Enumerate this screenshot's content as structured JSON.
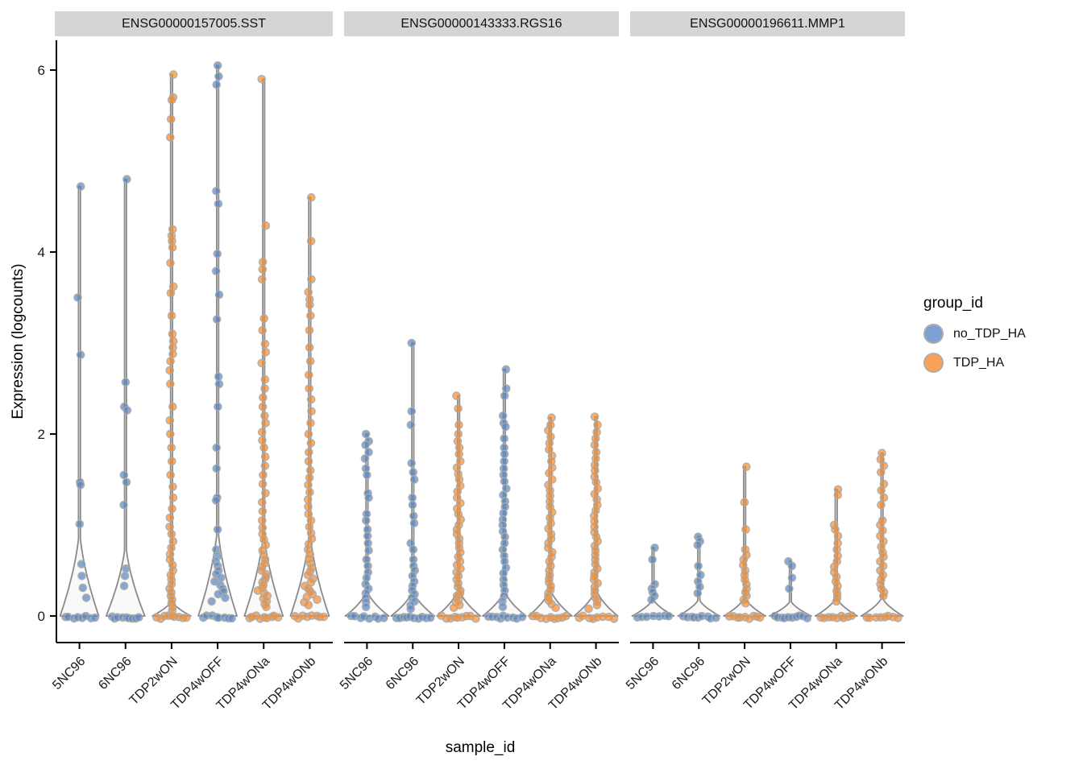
{
  "chart_data": {
    "type": "violin",
    "xlabel": "sample_id",
    "ylabel": "Expression (logcounts)",
    "y_ticks": [
      0,
      2,
      4,
      6
    ],
    "ylim": [
      0,
      6.3
    ],
    "grid": false,
    "samples": [
      "5NC96",
      "6NC96",
      "TDP2wON",
      "TDP4wOFF",
      "TDP4wONa",
      "TDP4wONb"
    ],
    "legend": {
      "title": "group_id",
      "entries": [
        {
          "label": "no_TDP_HA",
          "color": "#7DA0D2"
        },
        {
          "label": "TDP_HA",
          "color": "#F9A257"
        }
      ]
    },
    "colors": {
      "no_TDP_HA": "#5585C2",
      "TDP_HA": "#F68B2C",
      "violin_fill": "#F9F9F9",
      "violin_stroke": "#8A8A8A",
      "point_stroke": "#ABABAB",
      "strip_bg": "#D5D5D5",
      "axis": "#000000"
    },
    "facets": [
      {
        "title": "ENSG00000157005.SST",
        "violins": [
          {
            "sample": "5NC96",
            "group": "no_TDP_HA",
            "flare": 1.0,
            "half": 24,
            "points": [
              4.72,
              3.5,
              2.87,
              1.47,
              1.44,
              1.01,
              0.57,
              0.44,
              0.31,
              0.2
            ],
            "zeros": 8
          },
          {
            "sample": "6NC96",
            "group": "no_TDP_HA",
            "flare": 0.85,
            "half": 24,
            "points": [
              4.8,
              2.57,
              2.3,
              2.26,
              1.55,
              1.47,
              1.22,
              0.52,
              0.44,
              0.33
            ],
            "zeros": 9
          },
          {
            "sample": "TDP2wON",
            "group": "TDP_HA",
            "flare": 0.18,
            "half": 24,
            "points": [
              5.95,
              5.7,
              5.67,
              5.46,
              5.26,
              4.25,
              4.18,
              4.12,
              4.05,
              3.88,
              3.62,
              3.55,
              3.3,
              3.1,
              3.02,
              2.95,
              2.88,
              2.8,
              2.7,
              2.55,
              2.3,
              2.15,
              2.0,
              1.85,
              1.7,
              1.55,
              1.42,
              1.3,
              1.18,
              1.08,
              0.98,
              0.9,
              0.82,
              0.75,
              0.68,
              0.62,
              0.56,
              0.5,
              0.45,
              0.4,
              0.35,
              0.3,
              0.26,
              0.22,
              0.18,
              0.14,
              0.1,
              0.06
            ],
            "zeros": 9
          },
          {
            "sample": "TDP4wOFF",
            "group": "no_TDP_HA",
            "flare": 1.05,
            "half": 24,
            "points": [
              6.05,
              5.93,
              5.84,
              4.67,
              4.53,
              3.98,
              3.79,
              3.53,
              3.26,
              2.63,
              2.55,
              2.3,
              1.85,
              1.62,
              1.3,
              1.27,
              0.95,
              0.73,
              0.66,
              0.6,
              0.55,
              0.5,
              0.46,
              0.42,
              0.38,
              0.34,
              0.3,
              0.27,
              0.24,
              0.2,
              0.16
            ],
            "zeros": 8
          },
          {
            "sample": "TDP4wONa",
            "group": "TDP_HA",
            "flare": 1.0,
            "half": 24,
            "points": [
              5.9,
              4.29,
              3.89,
              3.81,
              3.7,
              3.27,
              3.14,
              2.99,
              2.9,
              2.78,
              2.6,
              2.5,
              2.4,
              2.3,
              2.2,
              2.12,
              2.02,
              1.93,
              1.85,
              1.75,
              1.65,
              1.55,
              1.45,
              1.35,
              1.25,
              1.15,
              1.05,
              0.97,
              0.9,
              0.84,
              0.78,
              0.72,
              0.67,
              0.62,
              0.58,
              0.54,
              0.5,
              0.46,
              0.43,
              0.4,
              0.37,
              0.34,
              0.31,
              0.28,
              0.25,
              0.22,
              0.19,
              0.16,
              0.13,
              0.1
            ],
            "zeros": 9
          },
          {
            "sample": "TDP4wONb",
            "group": "TDP_HA",
            "flare": 1.0,
            "half": 24,
            "points": [
              4.6,
              4.12,
              3.7,
              3.56,
              3.48,
              3.42,
              3.3,
              3.14,
              2.95,
              2.8,
              2.65,
              2.5,
              2.38,
              2.25,
              2.12,
              2.0,
              1.9,
              1.8,
              1.7,
              1.6,
              1.52,
              1.44,
              1.36,
              1.28,
              1.2,
              1.12,
              1.05,
              0.98,
              0.91,
              0.85,
              0.79,
              0.73,
              0.68,
              0.63,
              0.58,
              0.53,
              0.49,
              0.45,
              0.41,
              0.37,
              0.33,
              0.3,
              0.27,
              0.24,
              0.21,
              0.18,
              0.15,
              0.12
            ],
            "zeros": 8
          }
        ]
      },
      {
        "title": "ENSG00000143333.RGS16",
        "violins": [
          {
            "sample": "5NC96",
            "group": "no_TDP_HA",
            "flare": 0.3,
            "half": 27,
            "points": [
              2.0,
              1.92,
              1.88,
              1.8,
              1.73,
              1.62,
              1.55,
              1.35,
              1.3,
              1.12,
              1.05,
              0.95,
              0.88,
              0.8,
              0.72,
              0.62,
              0.55,
              0.48,
              0.42,
              0.35,
              0.3,
              0.25,
              0.2,
              0.15,
              0.1
            ],
            "zeros": 8
          },
          {
            "sample": "6NC96",
            "group": "no_TDP_HA",
            "flare": 0.3,
            "half": 27,
            "points": [
              3.0,
              2.25,
              2.1,
              1.68,
              1.58,
              1.5,
              1.3,
              1.22,
              1.1,
              1.02,
              0.8,
              0.73,
              0.62,
              0.55,
              0.5,
              0.44,
              0.38,
              0.33,
              0.28,
              0.24,
              0.2,
              0.16,
              0.12,
              0.08
            ],
            "zeros": 10
          },
          {
            "sample": "TDP2wON",
            "group": "TDP_HA",
            "flare": 0.32,
            "half": 27,
            "points": [
              2.42,
              2.28,
              2.1,
              2.0,
              1.92,
              1.85,
              1.78,
              1.7,
              1.63,
              1.56,
              1.5,
              1.43,
              1.37,
              1.3,
              1.24,
              1.18,
              1.12,
              1.06,
              1.0,
              0.95,
              0.9,
              0.85,
              0.8,
              0.75,
              0.7,
              0.65,
              0.6,
              0.56,
              0.52,
              0.48,
              0.44,
              0.4,
              0.36,
              0.32,
              0.28,
              0.25,
              0.22,
              0.18,
              0.15,
              0.12,
              0.09
            ],
            "zeros": 9
          },
          {
            "sample": "TDP4wOFF",
            "group": "no_TDP_HA",
            "flare": 0.3,
            "half": 27,
            "points": [
              2.71,
              2.5,
              2.42,
              2.2,
              2.12,
              2.08,
              1.95,
              1.85,
              1.78,
              1.7,
              1.62,
              1.55,
              1.48,
              1.4,
              1.33,
              1.26,
              1.2,
              1.13,
              1.06,
              1.0,
              0.93,
              0.87,
              0.8,
              0.73,
              0.66,
              0.6,
              0.53,
              0.47,
              0.4,
              0.34,
              0.28,
              0.22,
              0.16,
              0.1
            ],
            "zeros": 9
          },
          {
            "sample": "TDP4wONa",
            "group": "TDP_HA",
            "flare": 0.32,
            "half": 27,
            "points": [
              2.18,
              2.1,
              2.04,
              1.97,
              1.9,
              1.83,
              1.76,
              1.7,
              1.63,
              1.57,
              1.5,
              1.44,
              1.38,
              1.32,
              1.26,
              1.2,
              1.14,
              1.08,
              1.02,
              0.96,
              0.9,
              0.85,
              0.8,
              0.75,
              0.7,
              0.65,
              0.6,
              0.55,
              0.5,
              0.45,
              0.41,
              0.37,
              0.33,
              0.29,
              0.25,
              0.21,
              0.17,
              0.13,
              0.09
            ],
            "zeros": 9
          },
          {
            "sample": "TDP4wONb",
            "group": "TDP_HA",
            "flare": 0.32,
            "half": 27,
            "points": [
              2.19,
              2.1,
              2.02,
              1.95,
              1.88,
              1.8,
              1.73,
              1.66,
              1.6,
              1.53,
              1.47,
              1.4,
              1.34,
              1.28,
              1.22,
              1.16,
              1.1,
              1.04,
              0.98,
              0.92,
              0.87,
              0.82,
              0.77,
              0.72,
              0.67,
              0.62,
              0.57,
              0.52,
              0.48,
              0.44,
              0.4,
              0.36,
              0.32,
              0.28,
              0.24,
              0.2,
              0.16,
              0.12,
              0.08
            ],
            "zeros": 8
          }
        ]
      },
      {
        "title": "ENSG00000196611.MMP1",
        "violins": [
          {
            "sample": "5NC96",
            "group": "no_TDP_HA",
            "flare": 0.2,
            "half": 26,
            "points": [
              0.75,
              0.62,
              0.35,
              0.3,
              0.26,
              0.22,
              0.18
            ],
            "zeros": 7
          },
          {
            "sample": "6NC96",
            "group": "no_TDP_HA",
            "flare": 0.2,
            "half": 26,
            "points": [
              0.87,
              0.82,
              0.78,
              0.55,
              0.45,
              0.38,
              0.32,
              0.25
            ],
            "zeros": 9
          },
          {
            "sample": "TDP2wON",
            "group": "TDP_HA",
            "flare": 0.22,
            "half": 26,
            "points": [
              1.64,
              1.25,
              0.95,
              0.73,
              0.67,
              0.62,
              0.56,
              0.5,
              0.45,
              0.4,
              0.35,
              0.3,
              0.26,
              0.22,
              0.18,
              0.14
            ],
            "zeros": 9
          },
          {
            "sample": "TDP4wOFF",
            "group": "no_TDP_HA",
            "flare": 0.18,
            "half": 26,
            "points": [
              0.6,
              0.55,
              0.42,
              0.3
            ],
            "zeros": 10
          },
          {
            "sample": "TDP4wONa",
            "group": "TDP_HA",
            "flare": 0.22,
            "half": 26,
            "points": [
              1.39,
              1.33,
              1.0,
              0.95,
              0.88,
              0.8,
              0.73,
              0.66,
              0.6,
              0.54,
              0.48,
              0.43,
              0.38,
              0.33,
              0.28,
              0.24,
              0.2,
              0.16
            ],
            "zeros": 9
          },
          {
            "sample": "TDP4wONb",
            "group": "TDP_HA",
            "flare": 0.22,
            "half": 26,
            "points": [
              1.79,
              1.72,
              1.65,
              1.58,
              1.45,
              1.38,
              1.3,
              1.22,
              1.05,
              1.0,
              0.94,
              0.88,
              0.82,
              0.76,
              0.7,
              0.65,
              0.6,
              0.55,
              0.5,
              0.45,
              0.4,
              0.35,
              0.3,
              0.26,
              0.22
            ],
            "zeros": 8
          }
        ]
      }
    ]
  }
}
